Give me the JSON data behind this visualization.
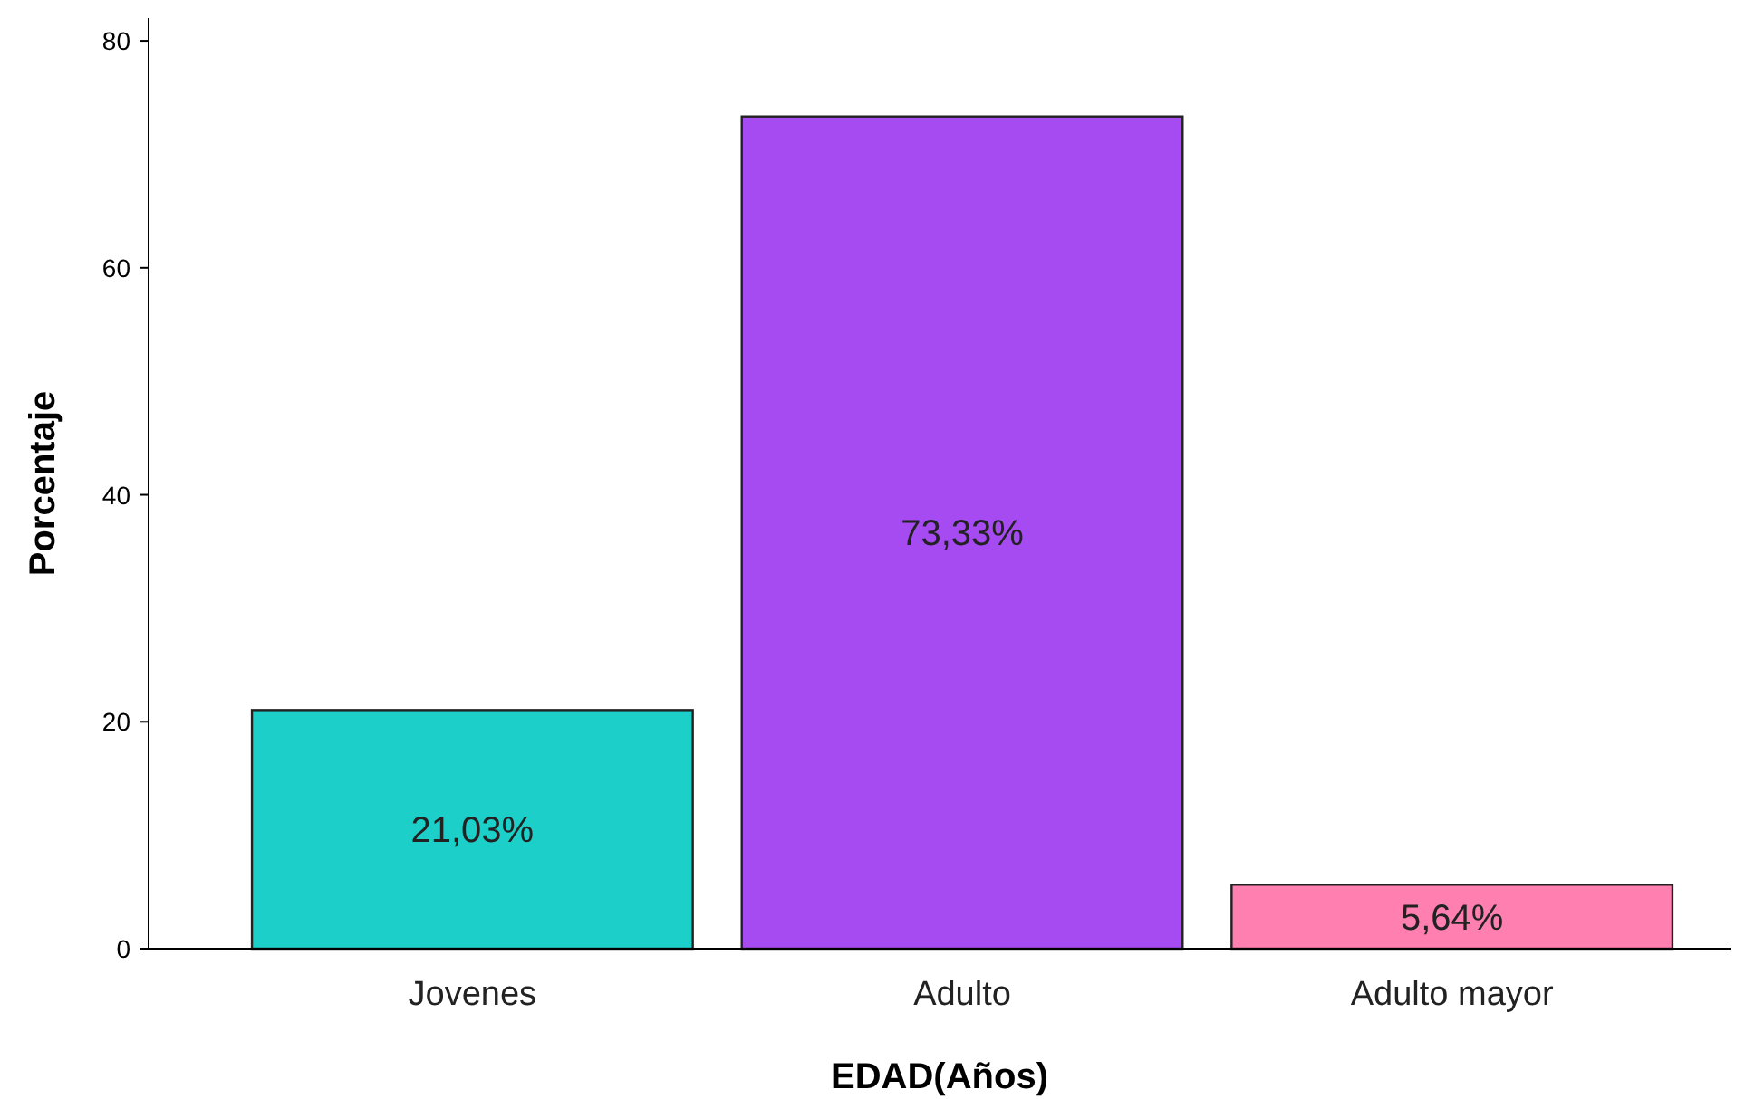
{
  "chart_data": {
    "type": "bar",
    "xlabel": "EDAD(Años)",
    "ylabel": "Porcentaje",
    "categories": [
      "Jovenes",
      "Adulto",
      "Adulto mayor"
    ],
    "values": [
      21.03,
      73.33,
      5.64
    ],
    "colors": [
      "#1ccfc9",
      "#a64af2",
      "#ff7fb0"
    ],
    "value_labels": [
      "21,03%",
      "73,33%",
      "5,64%"
    ],
    "ylim": [
      0,
      82
    ],
    "yticks": [
      0,
      20,
      40,
      60,
      80
    ],
    "grid": false
  }
}
